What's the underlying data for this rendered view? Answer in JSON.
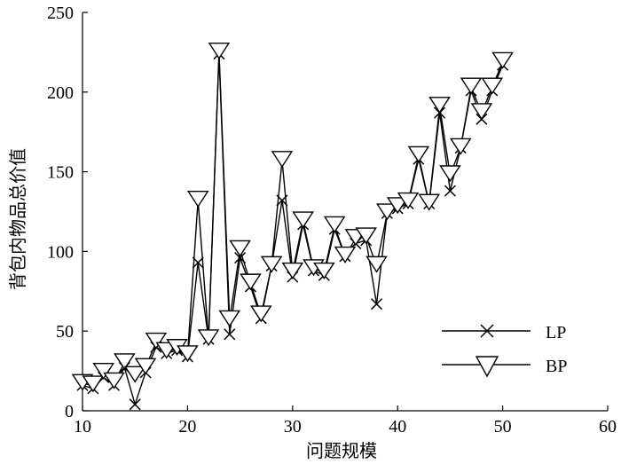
{
  "chart_data": {
    "type": "line",
    "xlabel": "问题规模",
    "ylabel": "背包内物品总价值",
    "xlim": [
      10,
      60
    ],
    "ylim": [
      0,
      250
    ],
    "xticks": [
      "10",
      "20",
      "30",
      "40",
      "50",
      "60"
    ],
    "yticks": [
      "0",
      "50",
      "100",
      "150",
      "200",
      "250"
    ],
    "grid": false,
    "legend_position": "bottom-right",
    "series": [
      {
        "name": "LP",
        "marker": "x",
        "x": [
          10,
          11,
          12,
          13,
          14,
          15,
          16,
          17,
          18,
          19,
          20,
          21,
          22,
          23,
          24,
          25,
          26,
          27,
          28,
          29,
          30,
          31,
          32,
          33,
          34,
          35,
          36,
          37,
          38,
          39,
          40,
          41,
          42,
          43,
          44,
          45,
          46,
          47,
          48,
          49,
          50
        ],
        "y": [
          16,
          14,
          21,
          16,
          27,
          4,
          24,
          40,
          36,
          38,
          34,
          93,
          45,
          224,
          48,
          96,
          78,
          58,
          91,
          132,
          84,
          117,
          88,
          85,
          114,
          97,
          105,
          107,
          67,
          124,
          127,
          130,
          158,
          130,
          187,
          138,
          165,
          201,
          183,
          201,
          217
        ]
      },
      {
        "name": "BP",
        "marker": "triangle-down",
        "x": [
          10,
          11,
          12,
          13,
          14,
          15,
          16,
          17,
          18,
          19,
          20,
          21,
          22,
          23,
          24,
          25,
          26,
          27,
          28,
          29,
          30,
          31,
          32,
          33,
          34,
          35,
          36,
          37,
          38,
          39,
          40,
          41,
          42,
          43,
          44,
          45,
          46,
          47,
          48,
          49,
          50
        ],
        "y": [
          17,
          16,
          24,
          18,
          30,
          22,
          27,
          43,
          37,
          39,
          35,
          132,
          45,
          225,
          57,
          101,
          80,
          60,
          91,
          157,
          87,
          119,
          89,
          87,
          116,
          97,
          108,
          109,
          91,
          124,
          128,
          131,
          160,
          130,
          191,
          148,
          165,
          203,
          187,
          203,
          219
        ]
      }
    ]
  }
}
